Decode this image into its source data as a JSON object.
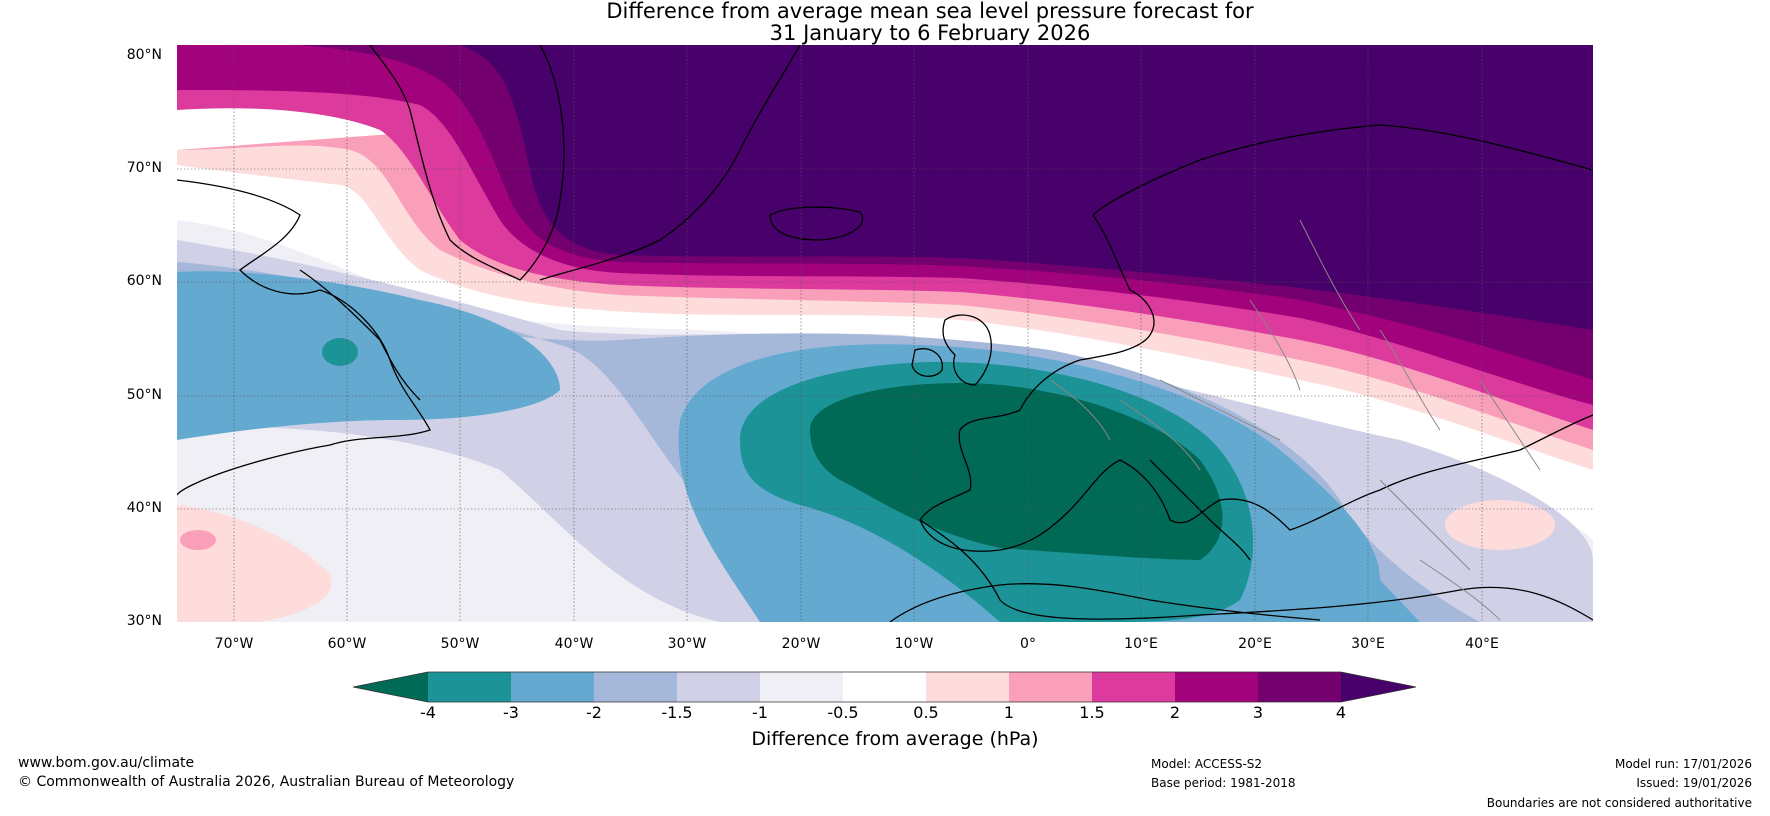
{
  "title": {
    "line1": "Difference from average mean sea level pressure forecast for",
    "line2": "31 January to 6 February 2026"
  },
  "map": {
    "lat_labels": [
      "80°N",
      "70°N",
      "60°N",
      "50°N",
      "40°N",
      "30°N"
    ],
    "lon_labels": [
      "70°W",
      "60°W",
      "50°W",
      "40°W",
      "30°W",
      "20°W",
      "10°W",
      "0°",
      "10°E",
      "20°E",
      "30°E",
      "40°E"
    ],
    "features": [
      "Greenland",
      "North America",
      "Europe",
      "North Africa",
      "Mediterranean"
    ],
    "anomaly_centres": [
      {
        "name": "high-pressure-anomaly",
        "region": "Greenland / Scandinavia",
        "value": 4
      },
      {
        "name": "low-pressure-anomaly",
        "region": "France / Western Mediterranean",
        "value": -4
      }
    ]
  },
  "colorbar": {
    "ticks": [
      "-4",
      "-3",
      "-2",
      "-1.5",
      "-1",
      "-0.5",
      "0.5",
      "1",
      "1.5",
      "2",
      "3",
      "4"
    ],
    "colors": [
      "#006a56",
      "#1c9397",
      "#64a9d0",
      "#a5b8da",
      "#d0d1e6",
      "#f1eff6",
      "#ffffff",
      "#fedcdc",
      "#f99fba",
      "#dc3a9c",
      "#a3027d",
      "#74006f",
      "#48006a"
    ],
    "label": "Difference from average (hPa)"
  },
  "footer": {
    "website": "www.bom.gov.au/climate",
    "copyright": "© Commonwealth of Australia 2026, Australian Bureau of Meteorology",
    "model": "Model: ACCESS-S2",
    "base_period": "Base period: 1981-2018",
    "model_run": "Model run: 17/01/2026",
    "issued": "Issued: 19/01/2026",
    "disclaimer": "Boundaries are not considered authoritative"
  }
}
